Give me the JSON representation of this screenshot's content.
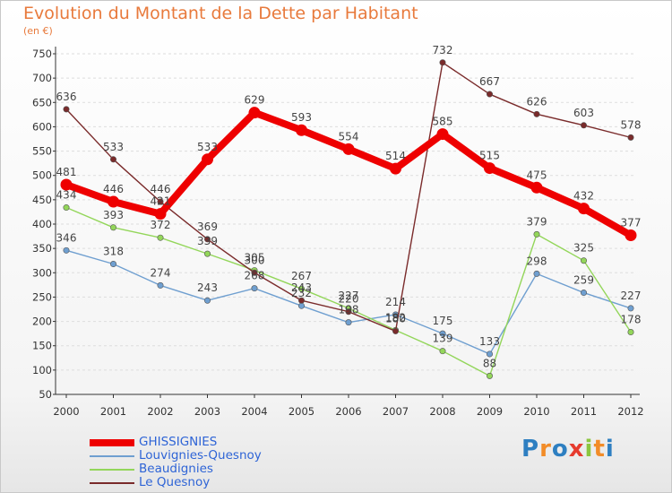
{
  "header": {
    "title": "Evolution du Montant de la Dette par Habitant",
    "subtitle": "(en €)"
  },
  "colors": {
    "title": "#e87a3c",
    "grid": "#dddddd",
    "axis": "#333333"
  },
  "logo": {
    "text": "Proxiti",
    "colors": [
      "#2e7fc1",
      "#f28c28",
      "#2e7fc1",
      "#e63b2e",
      "#8cc63f",
      "#f28c28",
      "#2e7fc1"
    ]
  },
  "chart_data": {
    "type": "line",
    "title": "Evolution du Montant de la Dette par Habitant",
    "subtitle": "(en €)",
    "xlabel": "",
    "ylabel": "",
    "x": [
      "2000",
      "2001",
      "2002",
      "2003",
      "2004",
      "2005",
      "2006",
      "2007",
      "2008",
      "2009",
      "2010",
      "2011",
      "2012"
    ],
    "ylim": [
      50,
      750
    ],
    "yticks": [
      50,
      100,
      150,
      200,
      250,
      300,
      350,
      400,
      450,
      500,
      550,
      600,
      650,
      700,
      750
    ],
    "grid": "horizontal dashed",
    "legend": "bottom-left",
    "series": [
      {
        "name": "GHISSIGNIES",
        "color": "#ee0000",
        "thick": true,
        "values": [
          481,
          446,
          421,
          533,
          629,
          593,
          554,
          514,
          585,
          515,
          475,
          432,
          377
        ],
        "labels": [
          "481",
          "446",
          "421",
          "533",
          "629",
          "593",
          "554",
          "514",
          "585",
          "515",
          "475",
          "432",
          "377"
        ]
      },
      {
        "name": "Louvignies-Quesnoy",
        "color": "#6f9fd0",
        "thick": false,
        "values": [
          346,
          318,
          274,
          243,
          268,
          232,
          198,
          214,
          175,
          133,
          298,
          259,
          227
        ],
        "labels": [
          "346",
          "318",
          "274",
          "243",
          "268",
          "232",
          "198",
          "214",
          "175",
          "133",
          "298",
          "259",
          "227"
        ]
      },
      {
        "name": "Beaudignies",
        "color": "#93d65a",
        "thick": false,
        "values": [
          434,
          393,
          372,
          339,
          305,
          267,
          227,
          182,
          139,
          88,
          379,
          325,
          178
        ],
        "labels": [
          "434",
          "393",
          "372",
          "339",
          "305",
          "267",
          "227",
          "182",
          "139",
          "88",
          "379",
          "325",
          "178"
        ]
      },
      {
        "name": "Le Quesnoy",
        "color": "#7a2b2b",
        "thick": false,
        "values": [
          636,
          533,
          446,
          369,
          300,
          243,
          220,
          180,
          732,
          667,
          626,
          603,
          578
        ],
        "labels": [
          "636",
          "533",
          "446",
          "369",
          "300",
          "243",
          "220",
          "180",
          "732",
          "667",
          "626",
          "603",
          "578"
        ]
      }
    ]
  }
}
